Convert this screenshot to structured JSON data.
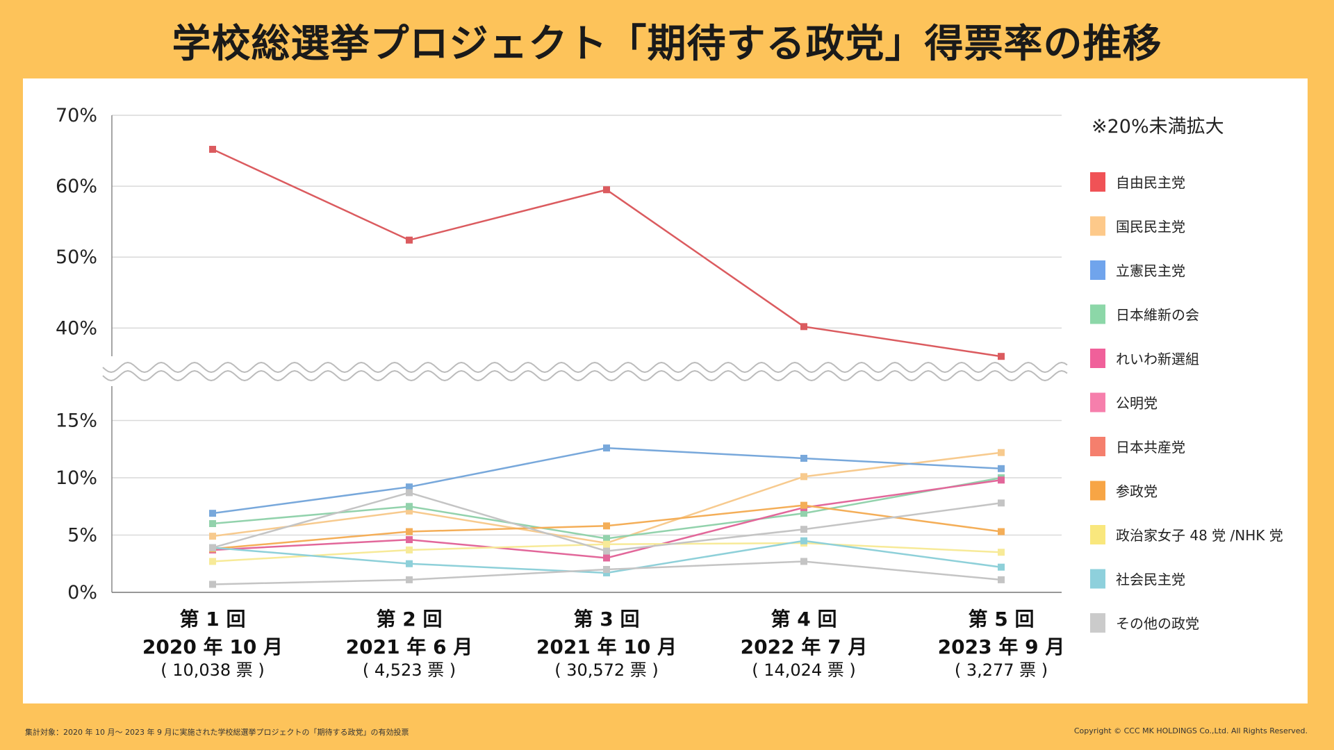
{
  "title": "学校総選挙プロジェクト「期待する政党」得票率の推移",
  "footnote": "集計対象：2020 年 10 月〜 2023 年 9 月に実施された学校総選挙プロジェクトの「期待する政党」の有効投票",
  "copyright": "Copyright © CCC MK HOLDINGS Co.,Ltd. All Rights Reserved.",
  "chart_data": {
    "type": "line",
    "title": "学校総選挙プロジェクト「期待する政党」得票率の推移",
    "legend_title": "※20%未満拡大",
    "legend_position": "right",
    "upper_ylim": [
      37,
      70
    ],
    "upper_yticks": [
      "40%",
      "50%",
      "60%",
      "70%"
    ],
    "lower_ylim": [
      0,
      18
    ],
    "lower_yticks": [
      "0%",
      "5%",
      "10%",
      "15%"
    ],
    "categories": [
      {
        "round": "第 1 回",
        "date": "2020 年 10 月",
        "votes": "( 10,038 票 )"
      },
      {
        "round": "第 2 回",
        "date": "2021 年 6 月",
        "votes": "( 4,523 票 )"
      },
      {
        "round": "第 3 回",
        "date": "2021 年 10 月",
        "votes": "( 30,572 票 )"
      },
      {
        "round": "第 4 回",
        "date": "2022 年 7 月",
        "votes": "( 14,024 票 )"
      },
      {
        "round": "第 5 回",
        "date": "2023 年 9 月",
        "votes": "( 3,277 票 )"
      }
    ],
    "series": [
      {
        "name": "自由民主党",
        "color": "#DB5B5F",
        "legend_color": "#F05256",
        "values": [
          65.2,
          52.4,
          59.5,
          40.2,
          36.0
        ]
      },
      {
        "name": "国民民主党",
        "color": "#F7CA8E",
        "legend_color": "#FDC98A",
        "values": [
          4.9,
          7.1,
          4.3,
          10.1,
          12.2
        ]
      },
      {
        "name": "立憲民主党",
        "color": "#78A8DB",
        "legend_color": "#70A4EC",
        "values": [
          6.9,
          9.2,
          12.6,
          11.7,
          10.8
        ]
      },
      {
        "name": "日本維新の会",
        "color": "#92D2AC",
        "legend_color": "#8CD7A8",
        "values": [
          6.0,
          7.5,
          4.7,
          6.9,
          10.0
        ]
      },
      {
        "name": "れいわ新選組",
        "color": "#E2679A",
        "legend_color": "#F0609A",
        "values": [
          3.7,
          4.6,
          3.0,
          7.4,
          9.8
        ]
      },
      {
        "name": "公明党",
        "color": "#F67FAC",
        "legend_color": "#F67FAC",
        "values": [
          null,
          null,
          null,
          null,
          null
        ]
      },
      {
        "name": "日本共産党",
        "color": "#F57F6D",
        "legend_color": "#F57F6D",
        "values": [
          null,
          null,
          null,
          null,
          null
        ]
      },
      {
        "name": "参政党",
        "color": "#F4AE58",
        "legend_color": "#F7A545",
        "values": [
          3.8,
          5.3,
          5.8,
          7.6,
          5.3
        ]
      },
      {
        "name": "政治家女子 48 党 /NHK 党",
        "color": "#F7EA98",
        "legend_color": "#F9E77D",
        "values": [
          2.7,
          3.7,
          4.2,
          4.3,
          3.5
        ]
      },
      {
        "name": "社会民主党",
        "color": "#8ED0D9",
        "legend_color": "#8ED0DC",
        "values": [
          3.9,
          2.5,
          1.7,
          4.5,
          2.2
        ]
      },
      {
        "name": "その他の政党",
        "color": "#C4C4C4",
        "legend_color": "#CBCBCB",
        "values": [
          0.7,
          1.1,
          2.0,
          2.7,
          1.1
        ]
      },
      {
        "name": "その他の政党",
        "color": "#C4C4C4",
        "legend_color": "#CBCBCB",
        "values": [
          3.9,
          8.7,
          3.6,
          5.5,
          7.8
        ],
        "hide_legend": true
      }
    ]
  }
}
